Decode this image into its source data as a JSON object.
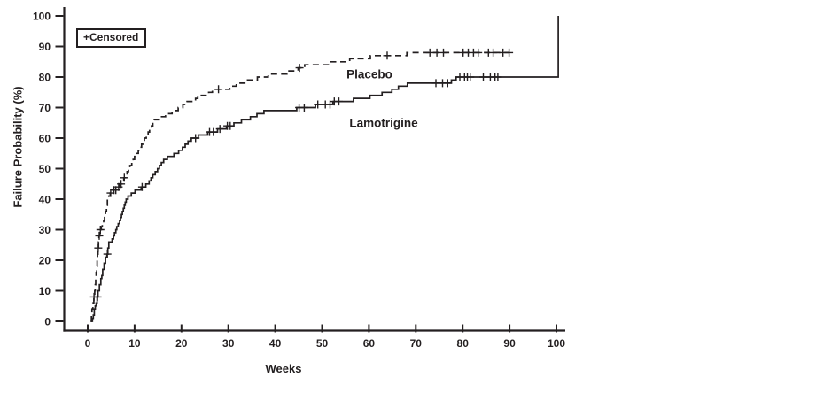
{
  "figure": {
    "background_color": "#ffffff",
    "ink_color": "#231f20"
  },
  "legend": {
    "label": "+Censored",
    "position": "top-left"
  },
  "chart_data": {
    "type": "line",
    "subtype": "kaplan-meier-step-failure-curves",
    "title": "",
    "xlabel": "Weeks",
    "ylabel": "Failure Probability (%)",
    "xlim": [
      0,
      100
    ],
    "ylim": [
      0,
      100
    ],
    "xticks": [
      0,
      10,
      20,
      30,
      40,
      50,
      60,
      70,
      80,
      90,
      100
    ],
    "yticks": [
      0,
      10,
      20,
      30,
      40,
      50,
      60,
      70,
      80,
      90,
      100
    ],
    "grid": false,
    "legend_position": "top-left-box",
    "series": [
      {
        "name": "Placebo",
        "style": "dashed",
        "points": [
          [
            0.6,
            0
          ],
          [
            0.8,
            2
          ],
          [
            0.9,
            4
          ],
          [
            1.1,
            6
          ],
          [
            1.3,
            8
          ],
          [
            1.5,
            10
          ],
          [
            1.6,
            12
          ],
          [
            1.7,
            14
          ],
          [
            1.8,
            16
          ],
          [
            1.9,
            18
          ],
          [
            2.0,
            20
          ],
          [
            2.1,
            22
          ],
          [
            2.2,
            24
          ],
          [
            2.3,
            26
          ],
          [
            2.4,
            28
          ],
          [
            2.6,
            30
          ],
          [
            2.9,
            31
          ],
          [
            3.1,
            32
          ],
          [
            3.4,
            33
          ],
          [
            3.6,
            34
          ],
          [
            3.8,
            36
          ],
          [
            4.0,
            38
          ],
          [
            4.2,
            40
          ],
          [
            4.5,
            41
          ],
          [
            4.8,
            42
          ],
          [
            5.4,
            43
          ],
          [
            6.2,
            44
          ],
          [
            6.8,
            45
          ],
          [
            7.3,
            46
          ],
          [
            7.7,
            47
          ],
          [
            8.1,
            48
          ],
          [
            8.4,
            49
          ],
          [
            8.7,
            50
          ],
          [
            9.0,
            51
          ],
          [
            9.4,
            52
          ],
          [
            9.7,
            53
          ],
          [
            10.0,
            54
          ],
          [
            10.4,
            55
          ],
          [
            10.8,
            56
          ],
          [
            11.1,
            57
          ],
          [
            11.5,
            58
          ],
          [
            11.8,
            59
          ],
          [
            12.1,
            60
          ],
          [
            12.5,
            61
          ],
          [
            12.9,
            62
          ],
          [
            13.2,
            63
          ],
          [
            13.6,
            64
          ],
          [
            13.9,
            65
          ],
          [
            14.2,
            66
          ],
          [
            15.6,
            67
          ],
          [
            16.6,
            68
          ],
          [
            18.0,
            69
          ],
          [
            19.3,
            70
          ],
          [
            20.3,
            71
          ],
          [
            21.2,
            72
          ],
          [
            23.0,
            73
          ],
          [
            23.5,
            74
          ],
          [
            25.8,
            75
          ],
          [
            26.6,
            76
          ],
          [
            30.3,
            77
          ],
          [
            31.7,
            78
          ],
          [
            34.1,
            79
          ],
          [
            36.2,
            80
          ],
          [
            38.5,
            81
          ],
          [
            42.5,
            82
          ],
          [
            44.9,
            83
          ],
          [
            46.3,
            84
          ],
          [
            51.7,
            85
          ],
          [
            55.9,
            86
          ],
          [
            60.3,
            87
          ],
          [
            68.1,
            88
          ],
          [
            90,
            88
          ]
        ],
        "censored": [
          [
            1.35,
            8
          ],
          [
            2.25,
            24
          ],
          [
            2.45,
            28
          ],
          [
            2.7,
            30
          ],
          [
            4.9,
            42
          ],
          [
            5.6,
            43
          ],
          [
            6.0,
            43
          ],
          [
            6.6,
            44
          ],
          [
            7.1,
            45
          ],
          [
            7.8,
            47
          ],
          [
            27.9,
            76
          ],
          [
            45.2,
            83
          ],
          [
            63.9,
            87
          ],
          [
            73.0,
            88
          ],
          [
            74.5,
            88
          ],
          [
            75.9,
            88
          ],
          [
            80.1,
            88
          ],
          [
            81.2,
            88
          ],
          [
            82.3,
            88
          ],
          [
            83.3,
            88
          ],
          [
            85.5,
            88
          ],
          [
            86.5,
            88
          ],
          [
            88.6,
            88
          ],
          [
            89.9,
            88
          ]
        ]
      },
      {
        "name": "Lamotrigine",
        "style": "solid",
        "points": [
          [
            0.7,
            0
          ],
          [
            1.0,
            1
          ],
          [
            1.2,
            2
          ],
          [
            1.4,
            4
          ],
          [
            1.6,
            5
          ],
          [
            1.8,
            6
          ],
          [
            2.0,
            8
          ],
          [
            2.2,
            10
          ],
          [
            2.5,
            12
          ],
          [
            2.8,
            14
          ],
          [
            3.0,
            15
          ],
          [
            3.2,
            17
          ],
          [
            3.5,
            19
          ],
          [
            3.8,
            21
          ],
          [
            4.1,
            22
          ],
          [
            4.3,
            24
          ],
          [
            4.5,
            26
          ],
          [
            5.2,
            27
          ],
          [
            5.5,
            28
          ],
          [
            5.7,
            29
          ],
          [
            6.0,
            30
          ],
          [
            6.2,
            31
          ],
          [
            6.5,
            32
          ],
          [
            6.8,
            33
          ],
          [
            7.0,
            34
          ],
          [
            7.2,
            35
          ],
          [
            7.4,
            36
          ],
          [
            7.6,
            37
          ],
          [
            7.8,
            38
          ],
          [
            8.0,
            39
          ],
          [
            8.2,
            40
          ],
          [
            8.6,
            41
          ],
          [
            9.3,
            42
          ],
          [
            10.1,
            43
          ],
          [
            11.4,
            44
          ],
          [
            12.4,
            45
          ],
          [
            13.1,
            46
          ],
          [
            13.5,
            47
          ],
          [
            13.9,
            48
          ],
          [
            14.4,
            49
          ],
          [
            14.9,
            50
          ],
          [
            15.3,
            51
          ],
          [
            15.7,
            52
          ],
          [
            16.2,
            53
          ],
          [
            17.0,
            54
          ],
          [
            18.4,
            55
          ],
          [
            19.4,
            56
          ],
          [
            20.2,
            57
          ],
          [
            20.8,
            58
          ],
          [
            21.4,
            59
          ],
          [
            22.1,
            60
          ],
          [
            23.6,
            61
          ],
          [
            25.6,
            62
          ],
          [
            27.7,
            63
          ],
          [
            29.6,
            64
          ],
          [
            31.2,
            65
          ],
          [
            32.8,
            66
          ],
          [
            34.7,
            67
          ],
          [
            36.1,
            68
          ],
          [
            37.6,
            69
          ],
          [
            44.6,
            70
          ],
          [
            48.6,
            71
          ],
          [
            52.3,
            72
          ],
          [
            56.7,
            73
          ],
          [
            60.2,
            74
          ],
          [
            62.8,
            75
          ],
          [
            64.9,
            76
          ],
          [
            66.3,
            77
          ],
          [
            68.2,
            78
          ],
          [
            77.6,
            79
          ],
          [
            78.6,
            80
          ],
          [
            100.4,
            80
          ],
          [
            100.4,
            100
          ]
        ],
        "censored": [
          [
            2.1,
            8
          ],
          [
            4.2,
            22
          ],
          [
            11.6,
            44
          ],
          [
            23.0,
            60
          ],
          [
            26.0,
            62
          ],
          [
            26.8,
            62
          ],
          [
            28.2,
            63
          ],
          [
            29.8,
            64
          ],
          [
            30.4,
            64
          ],
          [
            45.1,
            70
          ],
          [
            46.2,
            70
          ],
          [
            49.1,
            71
          ],
          [
            50.7,
            71
          ],
          [
            51.7,
            71
          ],
          [
            52.6,
            72
          ],
          [
            53.6,
            72
          ],
          [
            74.3,
            78
          ],
          [
            75.7,
            78
          ],
          [
            76.8,
            78
          ],
          [
            79.4,
            80
          ],
          [
            80.4,
            80
          ],
          [
            81.0,
            80
          ],
          [
            81.6,
            80
          ],
          [
            84.4,
            80
          ],
          [
            85.9,
            80
          ],
          [
            86.9,
            80
          ],
          [
            87.5,
            80
          ]
        ]
      }
    ]
  }
}
